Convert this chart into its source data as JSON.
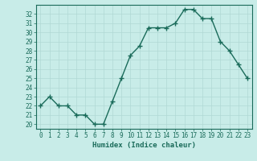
{
  "x": [
    0,
    1,
    2,
    3,
    4,
    5,
    6,
    7,
    8,
    9,
    10,
    11,
    12,
    13,
    14,
    15,
    16,
    17,
    18,
    19,
    20,
    21,
    22,
    23
  ],
  "y": [
    22,
    23,
    22,
    22,
    21,
    21,
    20,
    20,
    22.5,
    25,
    27.5,
    28.5,
    30.5,
    30.5,
    30.5,
    31,
    32.5,
    32.5,
    31.5,
    31.5,
    29,
    28,
    26.5,
    25
  ],
  "line_color": "#1a6b5a",
  "marker_color": "#1a6b5a",
  "bg_color": "#c8ece8",
  "grid_color": "#b0d8d4",
  "xlabel": "Humidex (Indice chaleur)",
  "ylim": [
    19.5,
    33.0
  ],
  "xlim": [
    -0.5,
    23.5
  ],
  "yticks": [
    20,
    21,
    22,
    23,
    24,
    25,
    26,
    27,
    28,
    29,
    30,
    31,
    32
  ],
  "xticks": [
    0,
    1,
    2,
    3,
    4,
    5,
    6,
    7,
    8,
    9,
    10,
    11,
    12,
    13,
    14,
    15,
    16,
    17,
    18,
    19,
    20,
    21,
    22,
    23
  ],
  "xlabel_fontsize": 6.5,
  "tick_fontsize": 5.5,
  "linewidth": 1.0,
  "markersize": 2.0
}
